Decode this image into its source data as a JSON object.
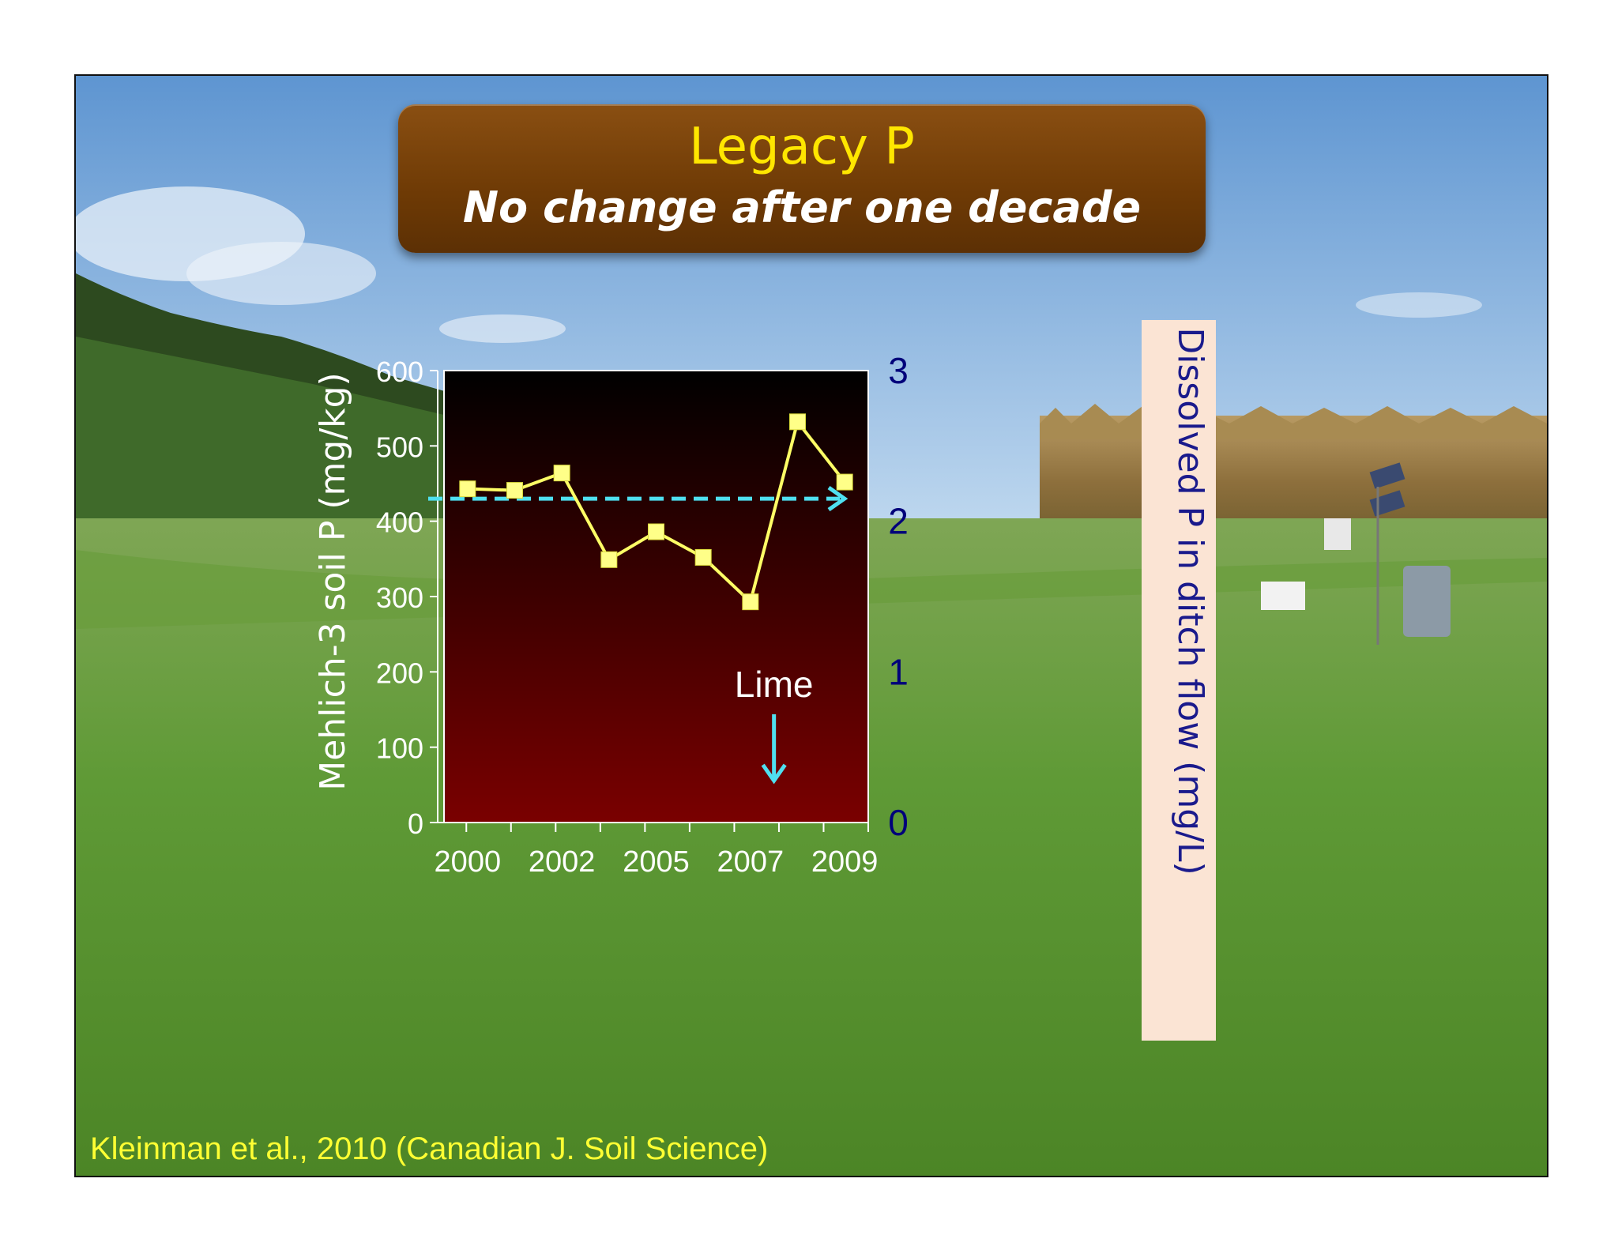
{
  "title": "Legacy P",
  "subtitle": "No change after one decade",
  "citation": "Kleinman et al., 2010 (Canadian J. Soil Science)",
  "annotation": "Lime",
  "colors": {
    "title_box": "#6e3a05",
    "title_text": "#ffe600",
    "line": "#ffff66",
    "marker": "#ffff88",
    "dashed_arrow": "#4fe0f0",
    "plot_top": "#000000",
    "plot_bottom": "#7a0000",
    "right_axis": "#00007a",
    "right_label_bg": "#fbe4d4"
  },
  "chart_data": {
    "type": "line",
    "ylabel": "Mehlich-3 soil P (mg/kg)",
    "y2label": "Dissolved P in ditch flow (mg/L)",
    "xticks": [
      "2000",
      "2002",
      "2005",
      "2007",
      "2009"
    ],
    "yticks": [
      0,
      100,
      200,
      300,
      400,
      500,
      600
    ],
    "y2ticks": [
      0,
      1,
      2,
      3
    ],
    "ylim": [
      0,
      600
    ],
    "y2lim": [
      0,
      3
    ],
    "xlim": [
      1999.5,
      2008.5
    ],
    "grid": false,
    "series": [
      {
        "x": [
          2000,
          2001,
          2002,
          2003,
          2004,
          2005,
          2006,
          2007,
          2008
        ],
        "values": [
          443,
          441,
          464,
          349,
          386,
          352,
          293,
          532,
          452
        ]
      }
    ],
    "reference_line": {
      "y2": 2.15
    },
    "annotations": [
      {
        "text": "Lime",
        "x": 2006.5
      }
    ]
  }
}
